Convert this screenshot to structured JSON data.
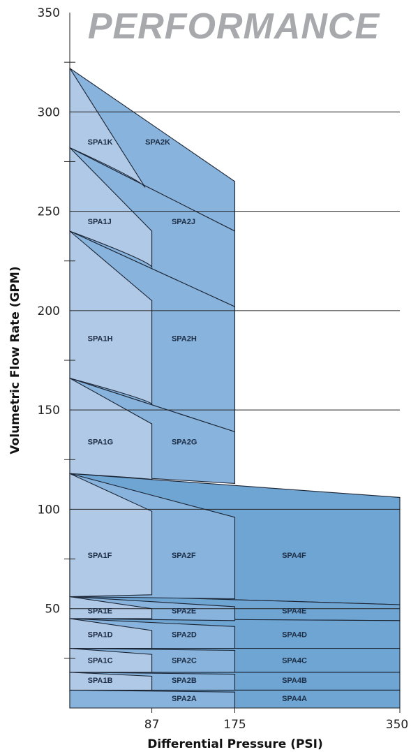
{
  "chart_data": {
    "type": "area",
    "title": "PERFORMANCE",
    "xlabel": "Differential Pressure (PSI)",
    "ylabel": "Volumetric Flow Rate (GPM)",
    "xlim": [
      0,
      350
    ],
    "ylim": [
      0,
      350
    ],
    "x_ticks": [
      "87",
      "175",
      "350"
    ],
    "y_ticks": [
      "50",
      "100",
      "150",
      "200",
      "250",
      "300",
      "350"
    ],
    "grid": "horizontal",
    "colors": {
      "spa1": "#b0c9e6",
      "spa2": "#87b3dd",
      "spa4": "#6fa5d2"
    },
    "regions": [
      {
        "name": "SPA1K",
        "pump": "spa1",
        "label_at": [
          19,
          285
        ],
        "boundary": [
          [
            0,
            322
          ],
          [
            0,
            282
          ],
          [
            80,
            262
          ]
        ]
      },
      {
        "name": "SPA2K",
        "pump": "spa2",
        "label_at": [
          80,
          285
        ],
        "boundary": [
          [
            0,
            322
          ],
          [
            175,
            265
          ],
          [
            175,
            240
          ],
          [
            0,
            282
          ]
        ]
      },
      {
        "name": "SPA1J",
        "pump": "spa1",
        "label_at": [
          19,
          245
        ],
        "boundary": [
          [
            0,
            282
          ],
          [
            0,
            240
          ],
          [
            87,
            222
          ],
          [
            87,
            240
          ]
        ]
      },
      {
        "name": "SPA2J",
        "pump": "spa2",
        "label_at": [
          108,
          245
        ],
        "boundary": [
          [
            0,
            282
          ],
          [
            175,
            240
          ],
          [
            175,
            202
          ],
          [
            0,
            240
          ]
        ]
      },
      {
        "name": "SPA1H",
        "pump": "spa1",
        "label_at": [
          19,
          186
        ],
        "boundary": [
          [
            0,
            240
          ],
          [
            0,
            166
          ],
          [
            87,
            153
          ],
          [
            87,
            205
          ]
        ]
      },
      {
        "name": "SPA2H",
        "pump": "spa2",
        "label_at": [
          108,
          186
        ],
        "boundary": [
          [
            0,
            240
          ],
          [
            175,
            202
          ],
          [
            175,
            139
          ],
          [
            0,
            166
          ]
        ]
      },
      {
        "name": "SPA1G",
        "pump": "spa1",
        "label_at": [
          19,
          134
        ],
        "boundary": [
          [
            0,
            166
          ],
          [
            0,
            118
          ],
          [
            87,
            115
          ],
          [
            87,
            143
          ]
        ]
      },
      {
        "name": "SPA2G",
        "pump": "spa2",
        "label_at": [
          108,
          134
        ],
        "boundary": [
          [
            0,
            166
          ],
          [
            175,
            139
          ],
          [
            175,
            113
          ],
          [
            0,
            118
          ]
        ]
      },
      {
        "name": "SPA1F",
        "pump": "spa1",
        "label_at": [
          19,
          77
        ],
        "boundary": [
          [
            0,
            118
          ],
          [
            0,
            56
          ],
          [
            87,
            57
          ],
          [
            87,
            99
          ]
        ]
      },
      {
        "name": "SPA2F",
        "pump": "spa2",
        "label_at": [
          108,
          77
        ],
        "boundary": [
          [
            0,
            118
          ],
          [
            175,
            96
          ],
          [
            175,
            55
          ],
          [
            0,
            56
          ]
        ]
      },
      {
        "name": "SPA4F",
        "pump": "spa4",
        "label_at": [
          225,
          77
        ],
        "boundary": [
          [
            0,
            118
          ],
          [
            350,
            106
          ],
          [
            350,
            52
          ],
          [
            0,
            57
          ]
        ]
      },
      {
        "name": "SPA1E",
        "pump": "spa1",
        "label_at": [
          19,
          49
        ],
        "boundary": [
          [
            0,
            56
          ],
          [
            0,
            45
          ],
          [
            87,
            45
          ],
          [
            87,
            50
          ]
        ]
      },
      {
        "name": "SPA2E",
        "pump": "spa2",
        "label_at": [
          108,
          49
        ],
        "boundary": [
          [
            0,
            56
          ],
          [
            175,
            51
          ],
          [
            175,
            44
          ],
          [
            0,
            45
          ]
        ]
      },
      {
        "name": "SPA4E",
        "pump": "spa4",
        "label_at": [
          225,
          49
        ],
        "boundary": [
          [
            0,
            57
          ],
          [
            350,
            52
          ],
          [
            350,
            44
          ],
          [
            0,
            45
          ]
        ]
      },
      {
        "name": "SPA1D",
        "pump": "spa1",
        "label_at": [
          19,
          37
        ],
        "boundary": [
          [
            0,
            45
          ],
          [
            0,
            30
          ],
          [
            87,
            30
          ],
          [
            87,
            39
          ]
        ]
      },
      {
        "name": "SPA2D",
        "pump": "spa2",
        "label_at": [
          108,
          37
        ],
        "boundary": [
          [
            0,
            45
          ],
          [
            175,
            41
          ],
          [
            175,
            30
          ],
          [
            0,
            30
          ]
        ]
      },
      {
        "name": "SPA4D",
        "pump": "spa4",
        "label_at": [
          225,
          37
        ],
        "boundary": [
          [
            0,
            45
          ],
          [
            350,
            44
          ],
          [
            350,
            30
          ],
          [
            0,
            30
          ]
        ]
      },
      {
        "name": "SPA1C",
        "pump": "spa1",
        "label_at": [
          19,
          24
        ],
        "boundary": [
          [
            0,
            30
          ],
          [
            0,
            18
          ],
          [
            87,
            18
          ],
          [
            87,
            27
          ]
        ]
      },
      {
        "name": "SPA2C",
        "pump": "spa2",
        "label_at": [
          108,
          24
        ],
        "boundary": [
          [
            0,
            30
          ],
          [
            175,
            29
          ],
          [
            175,
            18
          ],
          [
            0,
            18
          ]
        ]
      },
      {
        "name": "SPA4C",
        "pump": "spa4",
        "label_at": [
          225,
          24
        ],
        "boundary": [
          [
            0,
            30
          ],
          [
            350,
            30
          ],
          [
            350,
            18
          ],
          [
            0,
            18
          ]
        ]
      },
      {
        "name": "SPA1B",
        "pump": "spa1",
        "label_at": [
          19,
          14
        ],
        "boundary": [
          [
            0,
            18
          ],
          [
            0,
            9
          ],
          [
            87,
            9
          ],
          [
            87,
            16
          ]
        ]
      },
      {
        "name": "SPA2B",
        "pump": "spa2",
        "label_at": [
          108,
          14
        ],
        "boundary": [
          [
            0,
            18
          ],
          [
            175,
            17
          ],
          [
            175,
            9
          ],
          [
            0,
            9
          ]
        ]
      },
      {
        "name": "SPA4B",
        "pump": "spa4",
        "label_at": [
          225,
          14
        ],
        "boundary": [
          [
            0,
            18
          ],
          [
            350,
            18
          ],
          [
            350,
            9
          ],
          [
            0,
            9
          ]
        ]
      },
      {
        "name": "SPA2A",
        "pump": "spa2",
        "label_at": [
          108,
          5
        ],
        "boundary": [
          [
            0,
            9
          ],
          [
            175,
            8
          ],
          [
            175,
            0
          ],
          [
            0,
            0
          ]
        ]
      },
      {
        "name": "SPA4A",
        "pump": "spa4",
        "label_at": [
          225,
          5
        ],
        "boundary": [
          [
            0,
            9
          ],
          [
            350,
            9
          ],
          [
            350,
            0
          ],
          [
            0,
            0
          ]
        ]
      }
    ]
  }
}
